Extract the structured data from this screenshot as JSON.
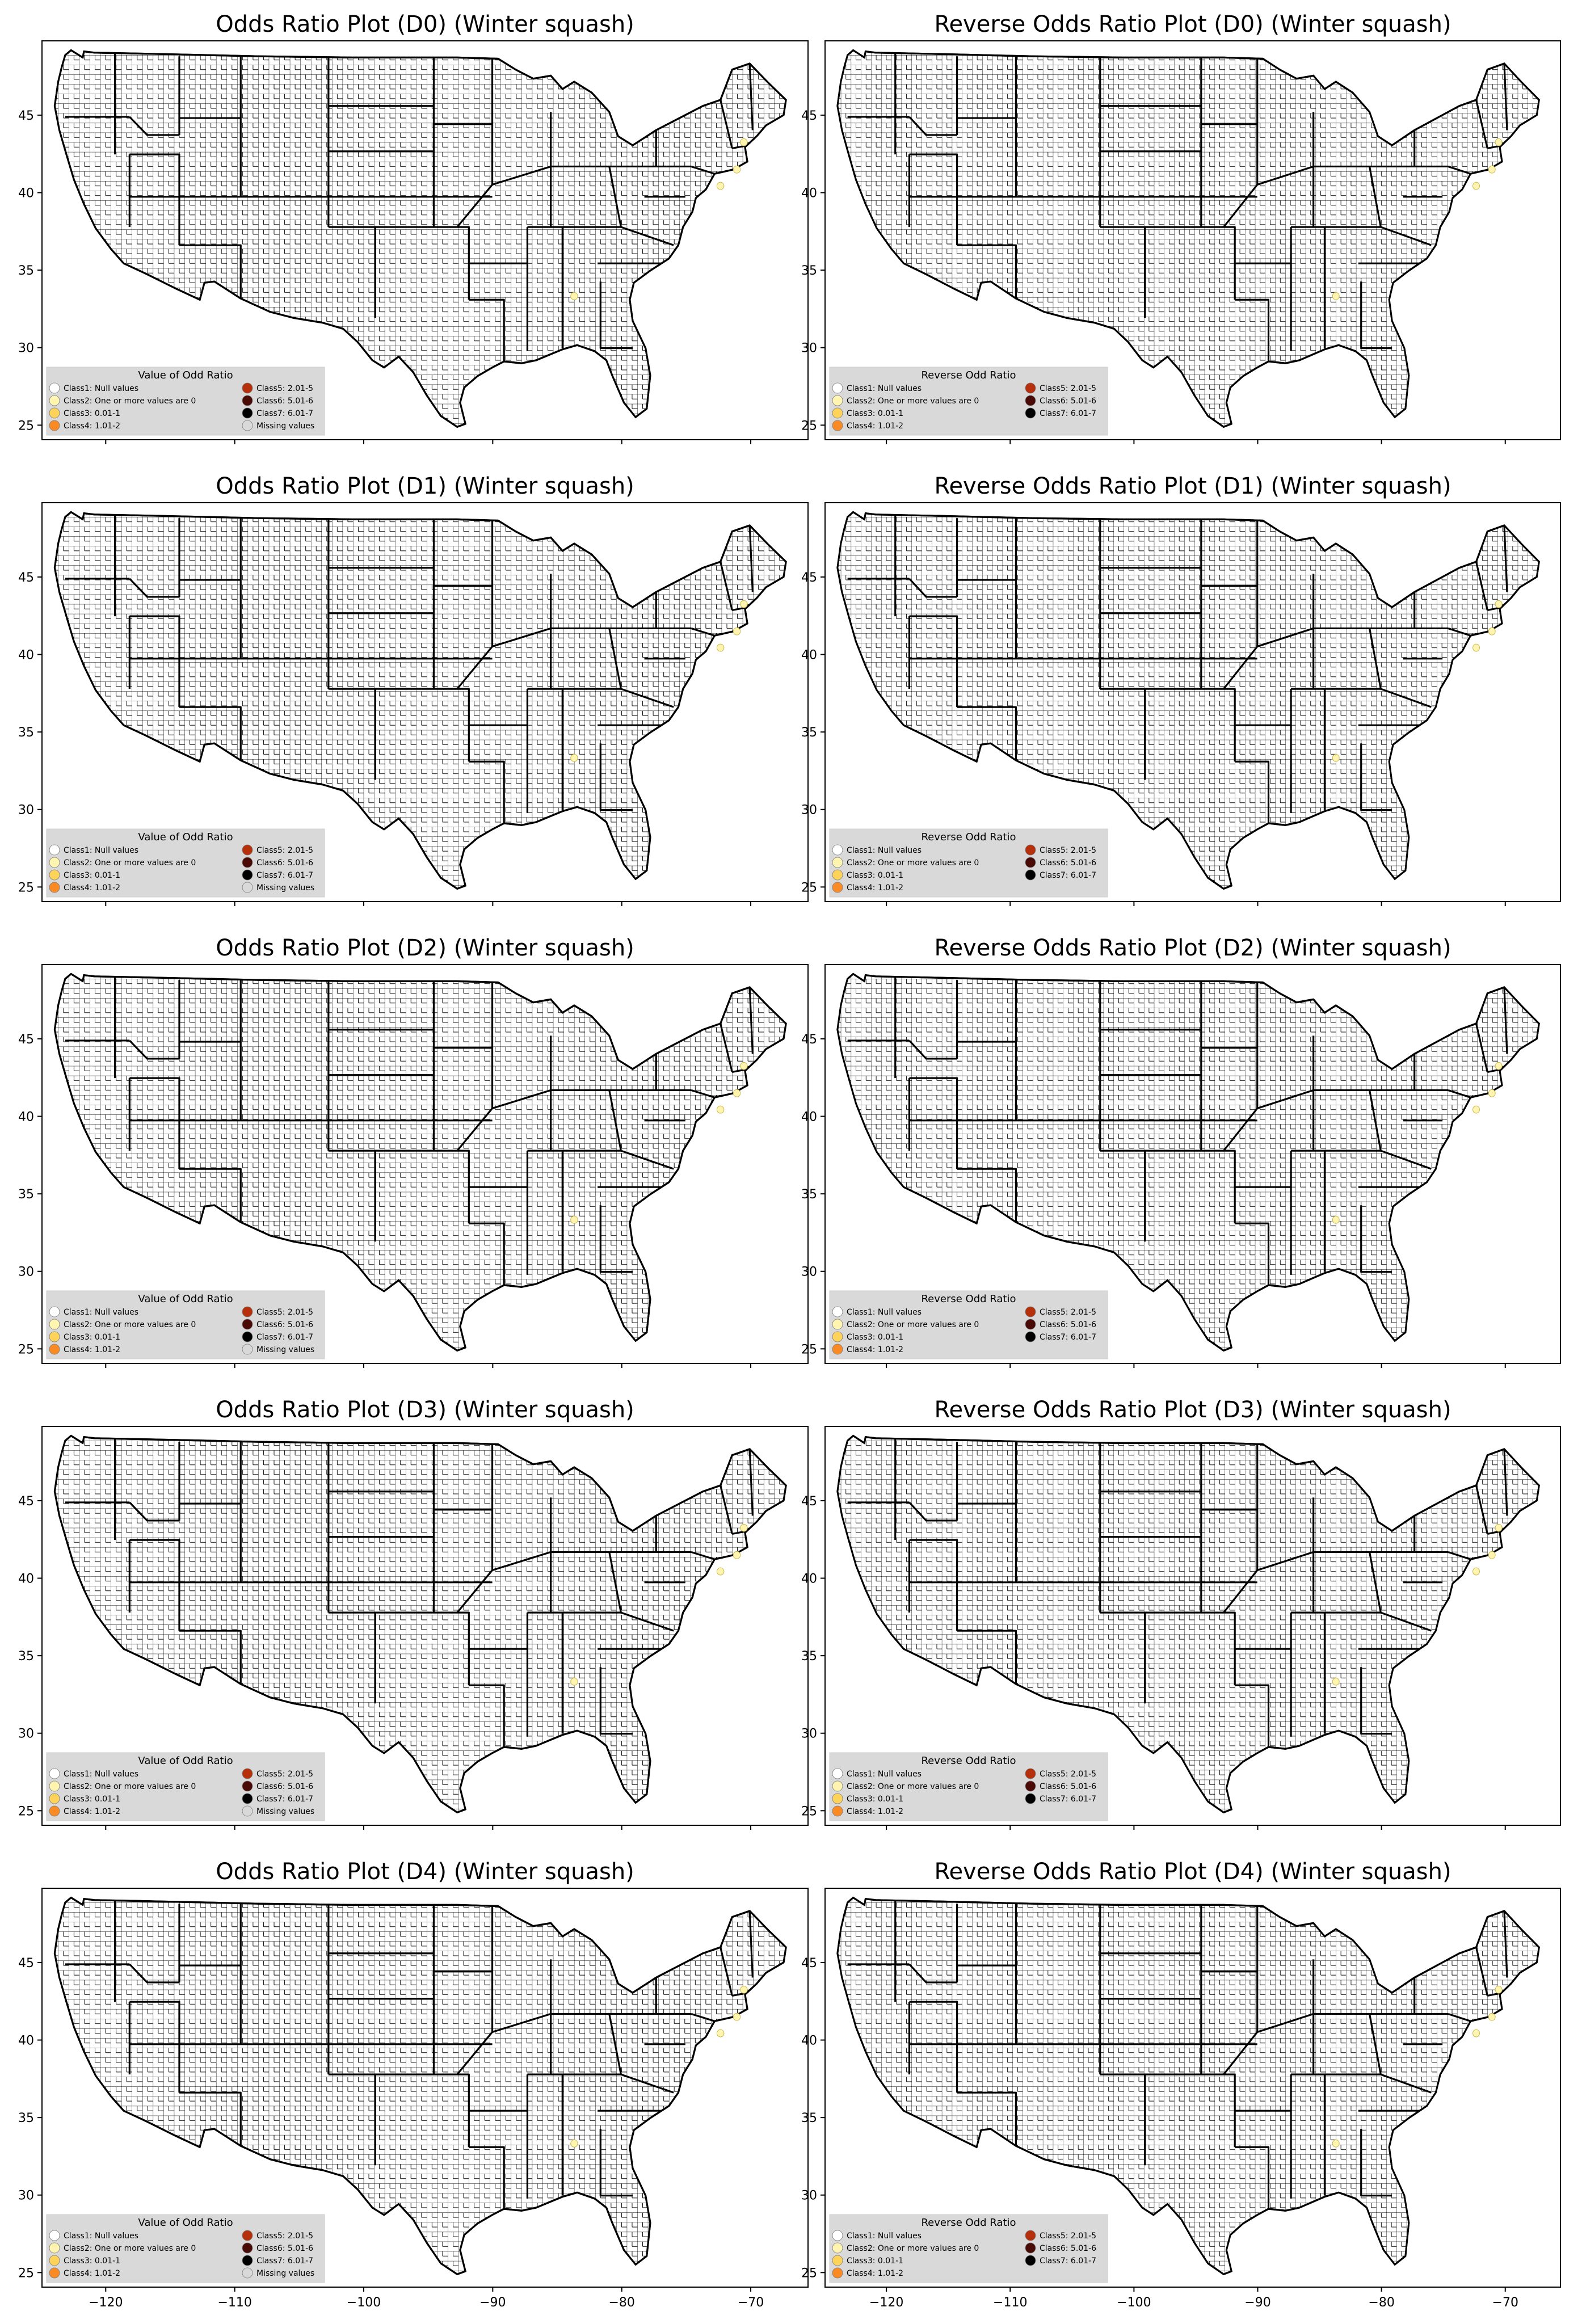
{
  "figure": {
    "crop": "Winter squash",
    "x_ticks": [
      "−120",
      "−110",
      "−100",
      "−90",
      "−80",
      "−70"
    ],
    "y_ticks": [
      "45",
      "40",
      "35",
      "30",
      "25"
    ],
    "rows": [
      {
        "drought": "D0",
        "panels": [
          {
            "title": "Odds Ratio Plot (D0) (Winter squash)",
            "legend_key": "odds"
          },
          {
            "title": "Reverse Odds Ratio Plot (D0) (Winter squash)",
            "legend_key": "reverse"
          }
        ]
      },
      {
        "drought": "D1",
        "panels": [
          {
            "title": "Odds Ratio Plot (D1) (Winter squash)",
            "legend_key": "odds"
          },
          {
            "title": "Reverse Odds Ratio Plot (D1) (Winter squash)",
            "legend_key": "reverse"
          }
        ]
      },
      {
        "drought": "D2",
        "panels": [
          {
            "title": "Odds Ratio Plot (D2) (Winter squash)",
            "legend_key": "odds"
          },
          {
            "title": "Reverse Odds Ratio Plot (D2) (Winter squash)",
            "legend_key": "reverse"
          }
        ]
      },
      {
        "drought": "D3",
        "panels": [
          {
            "title": "Odds Ratio Plot (D3) (Winter squash)",
            "legend_key": "odds"
          },
          {
            "title": "Reverse Odds Ratio Plot (D3) (Winter squash)",
            "legend_key": "reverse"
          }
        ]
      },
      {
        "drought": "D4",
        "panels": [
          {
            "title": "Odds Ratio Plot (D4) (Winter squash)",
            "legend_key": "odds"
          },
          {
            "title": "Reverse Odds Ratio Plot (D4) (Winter squash)",
            "legend_key": "reverse"
          }
        ]
      }
    ]
  },
  "legends": {
    "odds": {
      "title": "Value of Odd Ratio",
      "items": [
        {
          "label": "Class1: Null values",
          "color": "#ffffff"
        },
        {
          "label": "Class2: One or more values are 0",
          "color": "#fff5b0"
        },
        {
          "label": "Class3: 0.01-1",
          "color": "#fdd35a"
        },
        {
          "label": "Class4: 1.01-2",
          "color": "#f98a24"
        },
        {
          "label": "Class5: 2.01-5",
          "color": "#b5300b"
        },
        {
          "label": "Class6: 5.01-6",
          "color": "#4a0a06"
        },
        {
          "label": "Class7: 6.01-7",
          "color": "#000000"
        },
        {
          "label": "Missing values",
          "color": "#d9d9d9"
        }
      ]
    },
    "reverse": {
      "title": "Reverse Odd Ratio",
      "items": [
        {
          "label": "Class1: Null values",
          "color": "#ffffff"
        },
        {
          "label": "Class2: One or more values are 0",
          "color": "#fff5b0"
        },
        {
          "label": "Class3: 0.01-1",
          "color": "#fdd35a"
        },
        {
          "label": "Class4: 1.01-2",
          "color": "#f98a24"
        },
        {
          "label": "Class5: 2.01-5",
          "color": "#b5300b"
        },
        {
          "label": "Class6: 5.01-6",
          "color": "#4a0a06"
        },
        {
          "label": "Class7: 6.01-7",
          "color": "#000000"
        }
      ]
    }
  },
  "highlight_color": "#fff5b0"
}
